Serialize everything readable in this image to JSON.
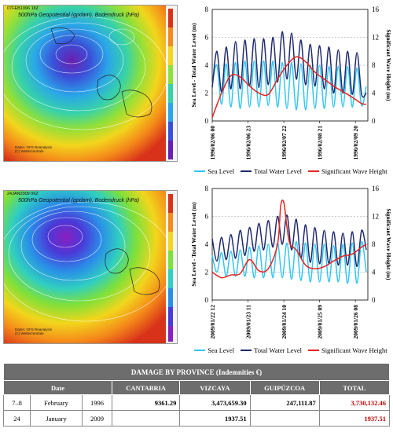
{
  "maps": [
    {
      "date": "07FEB1996 18Z",
      "title": "500hPa Geopotential (gpdam), Bodendruck (hPa)",
      "credit": [
        "Daten: GFS Reanalysis",
        "(C) Wetterzentrale"
      ]
    },
    {
      "date": "24JAN2009 06Z",
      "title": "500hPa Geopotential (gpdam), Bodendruck (hPa)",
      "credit": [
        "Daten: GFS Reanalysis",
        "(C) Wetterzentrale"
      ]
    }
  ],
  "legend": [
    "Sea Level",
    "Total Water Level",
    "Significant Wave Height"
  ],
  "colors": {
    "sea": "#33c6f4",
    "total": "#1f2a6e",
    "wave": "#e8231f"
  },
  "chart_data": [
    {
      "type": "line",
      "ylabel": "Sea Level - Total Water Level (m)",
      "y2label": "Significant Wave Height (m)",
      "ylim": [
        0,
        8
      ],
      "y2lim": [
        0,
        16
      ],
      "yticks": [
        "0",
        "2",
        "4",
        "6",
        "8"
      ],
      "y2ticks": [
        "0",
        "4",
        "8",
        "12",
        "16"
      ],
      "xticks": [
        "1996/02/06 00",
        "1996/02/06 23",
        "1996/02/07 22",
        "1996/02/08 21",
        "1996/02/09 20"
      ],
      "xrange": [
        0,
        100
      ],
      "tick_x": [
        0,
        23,
        46,
        69,
        92
      ],
      "grid": "dashed horizontal",
      "series": [
        {
          "name": "Sea Level",
          "color": "#33c6f4",
          "x": [
            0,
            3,
            6,
            9,
            12,
            15,
            18,
            21,
            24,
            27,
            30,
            33,
            36,
            39,
            42,
            45,
            48,
            51,
            54,
            57,
            60,
            63,
            66,
            69,
            72,
            75,
            78,
            81,
            84,
            87,
            90,
            93,
            96,
            99
          ],
          "y": [
            2.6,
            4.0,
            1.2,
            4.1,
            1.0,
            4.2,
            0.9,
            4.3,
            1.0,
            4.3,
            1.0,
            4.3,
            1.1,
            4.3,
            1.0,
            4.2,
            0.9,
            4.2,
            0.8,
            4.1,
            0.8,
            4.0,
            0.9,
            4.0,
            0.9,
            3.9,
            1.0,
            3.9,
            1.0,
            3.9,
            1.0,
            3.8,
            1.1,
            2.5
          ]
        },
        {
          "name": "Total Water Level",
          "color": "#1f2a6e",
          "x": [
            0,
            3,
            6,
            9,
            12,
            15,
            18,
            21,
            24,
            27,
            30,
            33,
            36,
            39,
            42,
            45,
            48,
            51,
            54,
            57,
            60,
            63,
            66,
            69,
            72,
            75,
            78,
            81,
            84,
            87,
            90,
            93,
            96,
            99
          ],
          "y": [
            2.4,
            5.0,
            2.1,
            5.3,
            2.3,
            5.7,
            2.3,
            5.8,
            2.5,
            5.9,
            2.4,
            5.9,
            2.6,
            6.0,
            2.8,
            6.4,
            3.0,
            6.3,
            3.0,
            5.8,
            2.6,
            5.5,
            2.5,
            5.4,
            2.3,
            5.3,
            2.0,
            5.1,
            2.0,
            5.0,
            1.9,
            4.9,
            1.9,
            2.0
          ]
        },
        {
          "name": "Significant Wave Height",
          "color": "#e8231f",
          "axis": "right",
          "x": [
            0,
            6,
            12,
            18,
            24,
            30,
            36,
            42,
            48,
            54,
            60,
            66,
            72,
            78,
            84,
            90,
            96,
            99
          ],
          "y": [
            0.5,
            4.0,
            6.5,
            6.3,
            5.0,
            4.0,
            3.8,
            6.0,
            8.0,
            9.2,
            8.5,
            7.0,
            6.0,
            5.0,
            4.2,
            3.4,
            2.5,
            2.4
          ]
        }
      ]
    },
    {
      "type": "line",
      "ylabel": "Sea Level - Total Water Level (m)",
      "y2label": "Significant Wave Height (m)",
      "ylim": [
        0,
        8
      ],
      "y2lim": [
        0,
        16
      ],
      "yticks": [
        "0",
        "2",
        "4",
        "6",
        "8"
      ],
      "y2ticks": [
        "0",
        "4",
        "8",
        "12",
        "16"
      ],
      "xticks": [
        "2009/01/22 12",
        "2009/01/23 11",
        "2009/01/24 10",
        "2009/01/25 09",
        "2009/01/26 08"
      ],
      "xrange": [
        0,
        100
      ],
      "tick_x": [
        0,
        23,
        46,
        69,
        92
      ],
      "grid": "dashed horizontal",
      "series": [
        {
          "name": "Sea Level",
          "color": "#33c6f4",
          "x": [
            0,
            3,
            6,
            9,
            12,
            15,
            18,
            21,
            24,
            27,
            30,
            33,
            36,
            39,
            42,
            45,
            48,
            51,
            54,
            57,
            60,
            63,
            66,
            69,
            72,
            75,
            78,
            81,
            84,
            87,
            90,
            93,
            96,
            99
          ],
          "y": [
            3.2,
            2.0,
            3.4,
            1.7,
            3.5,
            1.7,
            3.6,
            1.7,
            3.8,
            1.6,
            3.9,
            1.6,
            4.0,
            1.6,
            4.1,
            1.6,
            4.1,
            1.5,
            4.2,
            1.4,
            4.1,
            1.3,
            4.0,
            1.3,
            4.0,
            1.3,
            3.9,
            1.3,
            4.0,
            1.2,
            4.1,
            1.2,
            4.2,
            2.0
          ]
        },
        {
          "name": "Total Water Level",
          "color": "#1f2a6e",
          "x": [
            0,
            3,
            6,
            9,
            12,
            15,
            18,
            21,
            24,
            27,
            30,
            33,
            36,
            39,
            42,
            45,
            48,
            51,
            54,
            57,
            60,
            63,
            66,
            69,
            72,
            75,
            78,
            81,
            84,
            87,
            90,
            93,
            96,
            99
          ],
          "y": [
            4.4,
            2.8,
            4.5,
            2.9,
            4.7,
            3.0,
            5.0,
            3.2,
            5.2,
            3.5,
            5.5,
            3.6,
            5.7,
            3.8,
            6.0,
            4.0,
            6.1,
            3.6,
            5.8,
            3.0,
            5.4,
            2.7,
            5.2,
            2.6,
            5.0,
            2.6,
            4.9,
            2.5,
            4.8,
            2.5,
            4.9,
            2.4,
            5.0,
            3.6
          ]
        },
        {
          "name": "Significant Wave Height",
          "color": "#e8231f",
          "axis": "right",
          "x": [
            0,
            6,
            12,
            18,
            24,
            30,
            36,
            42,
            44,
            46,
            48,
            50,
            54,
            60,
            66,
            72,
            78,
            84,
            90,
            96,
            99
          ],
          "y": [
            4.0,
            3.2,
            3.6,
            3.8,
            5.8,
            4.2,
            4.5,
            8.0,
            13.5,
            14.0,
            10.5,
            8.0,
            7.2,
            5.0,
            4.5,
            4.8,
            5.6,
            6.3,
            6.6,
            7.6,
            8.0
          ]
        }
      ]
    }
  ],
  "table": {
    "title": "DAMAGE BY PROVINCE (Indemnities €)",
    "headers": [
      "Date",
      "CANTABRIA",
      "VIZCAYA",
      "GUIPÚZCOA",
      "TOTAL"
    ],
    "rows": [
      {
        "day": "7–8",
        "month": "February",
        "year": "1996",
        "cantabria": "9361.29",
        "vizcaya": "3,473,659.30",
        "guipuzcoa": "247,111.87",
        "total": "3,730,132.46"
      },
      {
        "day": "24",
        "month": "January",
        "year": "2009",
        "cantabria": "",
        "vizcaya": "1937.51",
        "guipuzcoa": "",
        "total": "1937.51"
      }
    ]
  }
}
